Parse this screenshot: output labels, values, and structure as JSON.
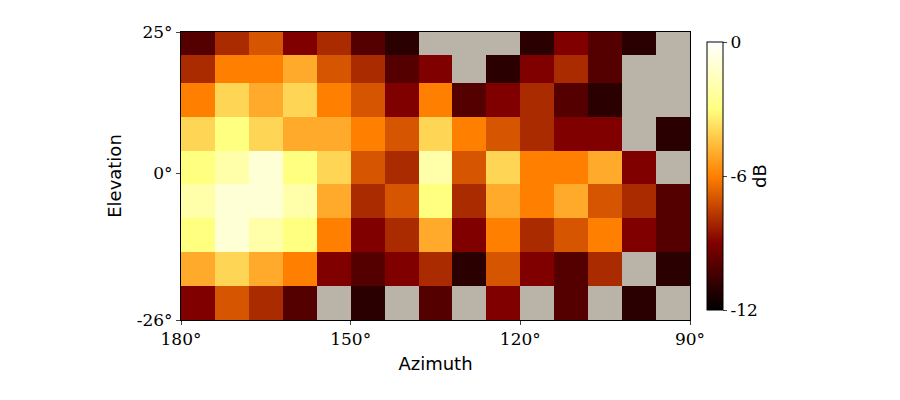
{
  "chart_data": {
    "type": "heatmap",
    "x_label": "Azimuth",
    "y_label": "Elevation",
    "x": [
      177,
      171,
      165,
      159,
      153,
      147,
      141,
      135,
      129,
      123,
      117,
      111,
      105,
      99,
      93
    ],
    "y": [
      -23,
      -17,
      -11,
      -5,
      1,
      7,
      13,
      19,
      23
    ],
    "z": [
      [
        -9,
        -7,
        -8,
        -10,
        null,
        -11,
        null,
        -10,
        null,
        -9,
        null,
        -10,
        null,
        -11,
        null
      ],
      [
        -5,
        -4,
        -5,
        -6,
        -9,
        -10,
        -9,
        -8,
        -11,
        -7,
        -9,
        -10,
        -8,
        null,
        -11
      ],
      [
        -3,
        -1,
        -2,
        -3,
        -6,
        -9,
        -8,
        -5,
        -9,
        -6,
        -8,
        -7,
        -6,
        -9,
        -10
      ],
      [
        -2,
        -1,
        -1,
        -2,
        -5,
        -8,
        -7,
        -3,
        -8,
        -5,
        -6,
        -5,
        -7,
        -8,
        -10
      ],
      [
        -3,
        -2,
        -1,
        -3,
        -4,
        -7,
        -8,
        -2,
        -7,
        -4,
        -6,
        -6,
        -5,
        -9,
        null
      ],
      [
        -4,
        -3,
        -4,
        -5,
        -5,
        -6,
        -7,
        -4,
        -6,
        -7,
        -8,
        -9,
        -9,
        null,
        -11
      ],
      [
        -6,
        -4,
        -5,
        -4,
        -6,
        -7,
        -9,
        -6,
        -10,
        -9,
        -8,
        -10,
        -11,
        null,
        null
      ],
      [
        -8,
        -6,
        -6,
        -5,
        -7,
        -8,
        -10,
        -9,
        null,
        -11,
        -9,
        -8,
        -10,
        null,
        null
      ],
      [
        -10,
        -8,
        -7,
        -9,
        -8,
        -10,
        -11,
        null,
        null,
        null,
        -11,
        -9,
        -10,
        -11,
        null
      ]
    ],
    "xlim": [
      180,
      90
    ],
    "ylim": [
      -26,
      25
    ],
    "xticks": [
      {
        "value": 180,
        "label": "180°"
      },
      {
        "value": 150,
        "label": "150°"
      },
      {
        "value": 120,
        "label": "120°"
      },
      {
        "value": 90,
        "label": "90°"
      }
    ],
    "yticks": [
      {
        "value": 25,
        "label": "25°"
      },
      {
        "value": 0,
        "label": "0°"
      },
      {
        "value": -26,
        "label": "-26°"
      }
    ],
    "colorbar": {
      "label": "dB",
      "range": [
        -12,
        0
      ],
      "ticks": [
        0,
        -6,
        -12
      ]
    }
  }
}
